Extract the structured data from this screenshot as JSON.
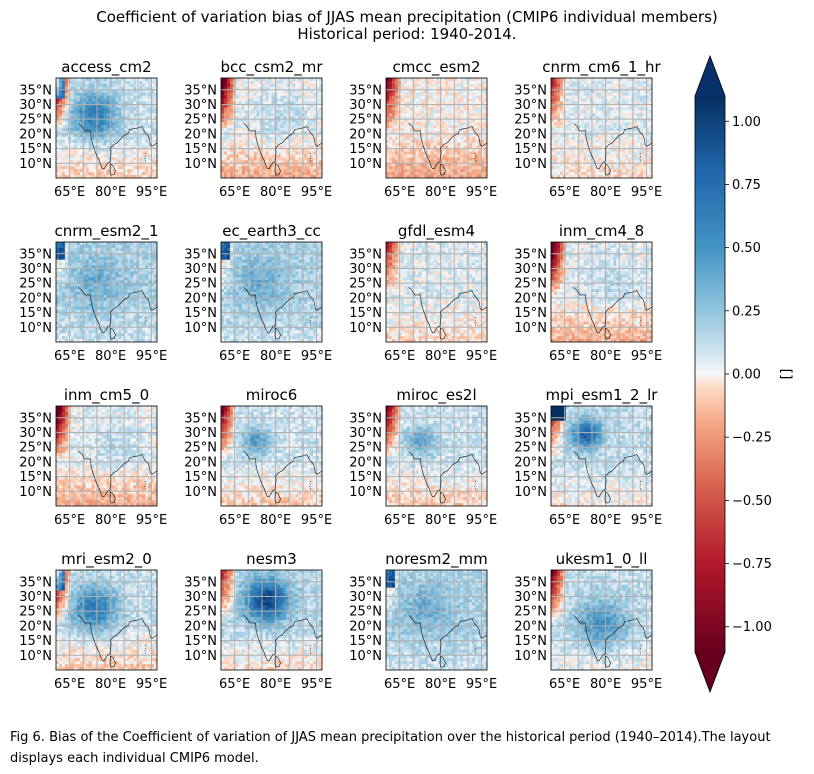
{
  "figure": {
    "title_line1": "Coefficient of variation bias of JJAS mean precipitation (CMIP6 individual members)",
    "title_line2": "Historical period: 1940-2014.",
    "caption": "Fig 6. Bias of the Coefficient of variation of JJAS mean precipitation over the historical period (1940–2014).The layout displays each individual CMIP6 model."
  },
  "chart_data": {
    "type": "heatmap",
    "layout": "4x4 grid of map panels",
    "panels": [
      {
        "title": "access_cm2",
        "pattern": "wet_north"
      },
      {
        "title": "bcc_csm2_mr",
        "pattern": "dry_west"
      },
      {
        "title": "cmcc_esm2",
        "pattern": "mild_dry"
      },
      {
        "title": "cnrm_cm6_1_hr",
        "pattern": "mild"
      },
      {
        "title": "cnrm_esm2_1",
        "pattern": "wet_light"
      },
      {
        "title": "ec_earth3_cc",
        "pattern": "wet_light"
      },
      {
        "title": "gfdl_esm4",
        "pattern": "mild"
      },
      {
        "title": "inm_cm4_8",
        "pattern": "dry_west"
      },
      {
        "title": "inm_cm5_0",
        "pattern": "dry_west"
      },
      {
        "title": "miroc6",
        "pattern": "mixed"
      },
      {
        "title": "miroc_es2l",
        "pattern": "mixed"
      },
      {
        "title": "mpi_esm1_2_lr",
        "pattern": "wet_west"
      },
      {
        "title": "mri_esm2_0",
        "pattern": "wet_north"
      },
      {
        "title": "nesm3",
        "pattern": "wet_north_strong"
      },
      {
        "title": "noresm2_mm",
        "pattern": "wet_light"
      },
      {
        "title": "ukesm1_0_ll",
        "pattern": "wet_central"
      }
    ],
    "x_ticks": [
      "65°E",
      "80°E",
      "95°E"
    ],
    "y_ticks": [
      "35°N",
      "30°N",
      "25°N",
      "20°N",
      "15°N",
      "10°N"
    ],
    "lon_range": [
      60,
      97
    ],
    "lat_range": [
      5,
      39
    ],
    "colorbar": {
      "label": "[]",
      "ticks": [
        "1.00",
        "0.75",
        "0.50",
        "0.25",
        "0.00",
        "−0.25",
        "−0.50",
        "−0.75",
        "−1.00"
      ],
      "range": [
        -1.1,
        1.1
      ],
      "colormap": "RdBu",
      "extend": "both"
    },
    "colors": {
      "strong_blue": "#08306b",
      "blue": "#2f73b4",
      "light_blue": "#d1e5f0",
      "white": "#f7f7f7",
      "light_red": "#fddbc7",
      "red": "#d6604d",
      "strong_red": "#67001f",
      "grid": "#b0b0b0"
    }
  }
}
